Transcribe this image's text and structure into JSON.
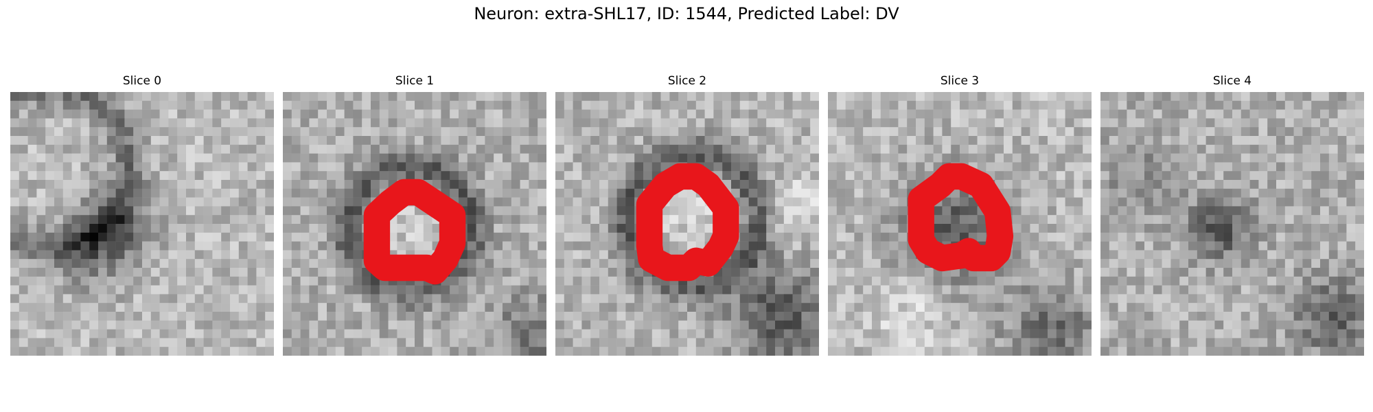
{
  "figure": {
    "title": "Neuron: extra-SHL17, ID: 1544, Predicted Label: DV"
  },
  "panels": [
    {
      "title": "Slice 0",
      "has_contour": false,
      "seed": 11
    },
    {
      "title": "Slice 1",
      "has_contour": true,
      "seed": 23
    },
    {
      "title": "Slice 2",
      "has_contour": true,
      "seed": 37
    },
    {
      "title": "Slice 3",
      "has_contour": true,
      "seed": 51
    },
    {
      "title": "Slice 4",
      "has_contour": false,
      "seed": 67
    }
  ],
  "colors": {
    "contour": "#e8161b",
    "background": "#ffffff"
  }
}
